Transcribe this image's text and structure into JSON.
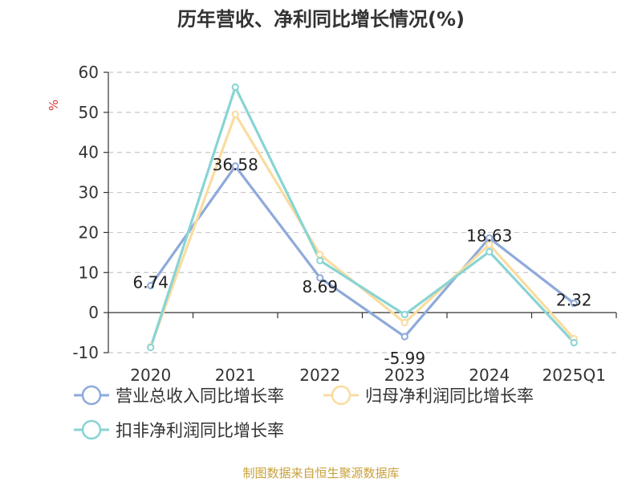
{
  "chart_data": {
    "type": "line",
    "title": "历年营收、净利同比增长情况(%)",
    "ylabel": "%",
    "categories": [
      "2020",
      "2021",
      "2022",
      "2023",
      "2024",
      "2025Q1"
    ],
    "ylim": [
      -10,
      60
    ],
    "yticks": [
      60,
      50,
      40,
      30,
      20,
      10,
      0,
      -10
    ],
    "grid": true,
    "legend_position": "bottom",
    "series": [
      {
        "name": "营业总收入同比增长率",
        "values": [
          6.74,
          36.58,
          8.69,
          -5.99,
          18.63,
          2.32
        ],
        "labels": [
          "6.74",
          "36.58",
          "8.69",
          "-5.99",
          "18.63",
          "2.32"
        ],
        "color": "#8eaadb"
      },
      {
        "name": "归母净利润同比增长率",
        "values": [
          -8.5,
          49.5,
          14.5,
          -2.5,
          17.0,
          -6.5
        ],
        "color": "#f9dca0"
      },
      {
        "name": "扣非净利润同比增长率",
        "values": [
          -8.7,
          56.3,
          13.0,
          -0.5,
          15.2,
          -7.5
        ],
        "color": "#88d4d4"
      }
    ]
  },
  "source": "制图数据来自恒生聚源数据库"
}
